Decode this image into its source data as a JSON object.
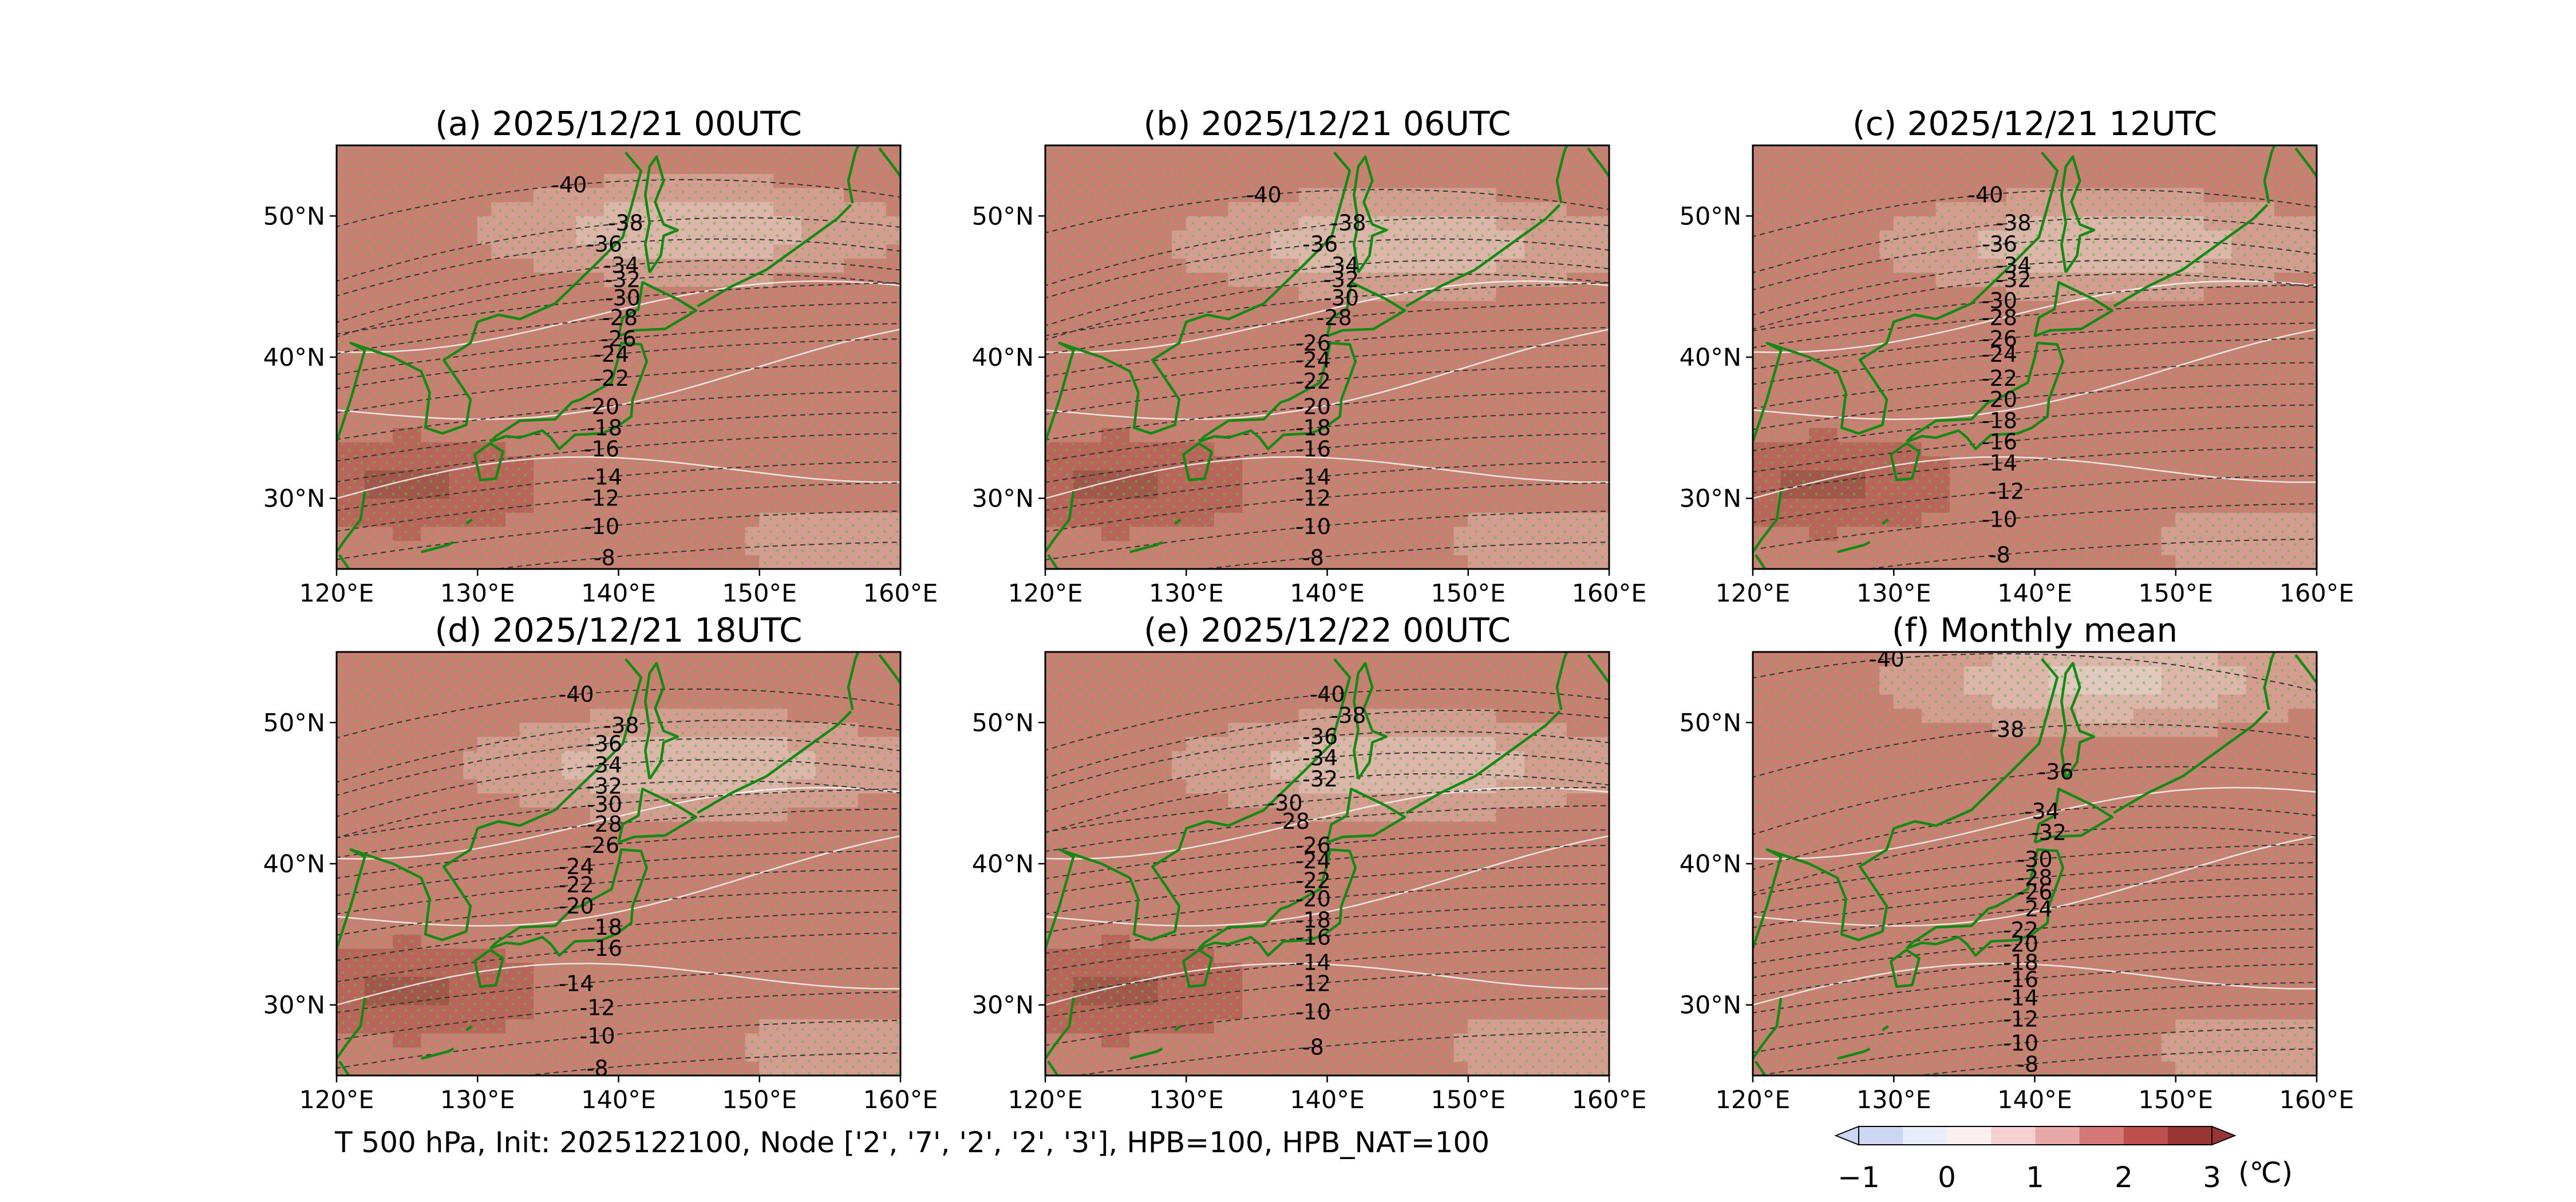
{
  "figure": {
    "caption": "T 500 hPa, Init: 2025122100, Node ['2', '7', '2', '2', '3'], HPB=100, HPB_NAT=100",
    "colorbar": {
      "ticks": [
        "−1",
        "0",
        "1",
        "2",
        "3"
      ],
      "unit": "(℃)",
      "levels": [
        -1.0,
        -0.5,
        0.0,
        0.5,
        1.0,
        1.5,
        2.0,
        2.5,
        3.0
      ],
      "colors": [
        "#cdd6f2",
        "#e9edfa",
        "#fbf0f0",
        "#f5d0d0",
        "#e8a8a8",
        "#d67878",
        "#bd4f4f",
        "#983636"
      ],
      "extend": "both"
    }
  },
  "chart_data": [
    {
      "type": "contour-map",
      "title": "(a) 2025/12/21 00UTC",
      "xlabel_ticks": [
        "120°E",
        "130°E",
        "140°E",
        "150°E",
        "160°E"
      ],
      "ylabel_ticks": [
        "30°N",
        "40°N",
        "50°N"
      ],
      "lon_range": [
        120,
        160
      ],
      "lat_range": [
        25,
        55
      ],
      "contour_labels": [
        "-40",
        "-38",
        "-36",
        "-34",
        "-32",
        "-30",
        "-28",
        "-26",
        "-24",
        "-22",
        "-20",
        "-18",
        "-16",
        "-14",
        "-12",
        "-10",
        "-8"
      ],
      "label_lons": [
        136.5,
        140.5,
        139.0,
        140.2,
        140.3,
        140.3,
        140.1,
        140.0,
        139.5,
        139.5,
        138.8,
        139.0,
        138.8,
        139.0,
        138.8,
        138.8,
        139.0
      ],
      "label_lats": [
        52.2,
        49.5,
        48.0,
        46.5,
        45.5,
        44.2,
        42.8,
        41.3,
        40.2,
        38.5,
        36.5,
        35.0,
        33.5,
        31.5,
        30.0,
        28.0,
        25.8
      ],
      "anomaly_c": {
        "ridge_lat": 49,
        "ridge_anom": 0.6,
        "warm_lat": 31,
        "warm_anom": 2.6
      }
    },
    {
      "type": "contour-map",
      "title": "(b) 2025/12/21 06UTC",
      "xlabel_ticks": [
        "120°E",
        "130°E",
        "140°E",
        "150°E",
        "160°E"
      ],
      "ylabel_ticks": [
        "30°N",
        "40°N",
        "50°N"
      ],
      "lon_range": [
        120,
        160
      ],
      "lat_range": [
        25,
        55
      ],
      "contour_labels": [
        "-40",
        "-38",
        "-36",
        "-34",
        "-32",
        "-30",
        "-28",
        "-26",
        "-24",
        "-22",
        "-20",
        "-18",
        "-16",
        "-14",
        "-12",
        "-10",
        "-8"
      ],
      "label_lons": [
        135.5,
        141.5,
        139.5,
        141.0,
        141.0,
        141.0,
        140.5,
        139.0,
        139.0,
        139.0,
        139.0,
        139.0,
        139.0,
        139.0,
        139.0,
        139.0,
        139.0
      ],
      "label_lats": [
        51.5,
        49.5,
        48.0,
        46.5,
        45.5,
        44.2,
        42.8,
        41.0,
        39.8,
        38.3,
        36.5,
        35.0,
        33.5,
        31.5,
        30.0,
        28.0,
        25.8
      ],
      "anomaly_c": {
        "ridge_lat": 48,
        "ridge_anom": 0.5,
        "warm_lat": 31,
        "warm_anom": 2.6
      }
    },
    {
      "type": "contour-map",
      "title": "(c) 2025/12/21 12UTC",
      "xlabel_ticks": [
        "120°E",
        "130°E",
        "140°E",
        "150°E",
        "160°E"
      ],
      "ylabel_ticks": [
        "30°N",
        "40°N",
        "50°N"
      ],
      "lon_range": [
        120,
        160
      ],
      "lat_range": [
        25,
        55
      ],
      "contour_labels": [
        "-40",
        "-38",
        "-36",
        "-34",
        "-32",
        "-30",
        "-28",
        "-26",
        "-24",
        "-22",
        "-20",
        "-18",
        "-16",
        "-14",
        "-12",
        "-10",
        "-8"
      ],
      "label_lons": [
        136.5,
        138.5,
        137.5,
        138.5,
        138.5,
        137.5,
        137.5,
        137.5,
        137.5,
        137.5,
        137.5,
        137.5,
        137.5,
        137.5,
        138.0,
        137.5,
        137.5
      ],
      "label_lats": [
        51.5,
        49.5,
        48.0,
        46.5,
        45.5,
        44.0,
        42.8,
        41.3,
        40.2,
        38.5,
        37.0,
        35.5,
        34.0,
        32.5,
        30.5,
        28.5,
        26.0
      ],
      "anomaly_c": {
        "ridge_lat": 48,
        "ridge_anom": 0.5,
        "warm_lat": 31,
        "warm_anom": 2.6
      }
    },
    {
      "type": "contour-map",
      "title": "(d) 2025/12/21 18UTC",
      "xlabel_ticks": [
        "120°E",
        "130°E",
        "140°E",
        "150°E",
        "160°E"
      ],
      "ylabel_ticks": [
        "30°N",
        "40°N",
        "50°N"
      ],
      "lon_range": [
        120,
        160
      ],
      "lat_range": [
        25,
        55
      ],
      "contour_labels": [
        "-40",
        "-38",
        "-36",
        "-34",
        "-32",
        "-30",
        "-28",
        "-26",
        "-24",
        "-22",
        "-20",
        "-18",
        "-16",
        "-14",
        "-12",
        "-10",
        "-8"
      ],
      "label_lons": [
        137.0,
        140.2,
        139.0,
        139.0,
        139.0,
        139.0,
        139.0,
        138.8,
        137.0,
        137.0,
        137.0,
        139.0,
        139.0,
        137.0,
        138.5,
        138.5,
        138.5
      ],
      "label_lats": [
        52.0,
        49.8,
        48.5,
        47.0,
        45.5,
        44.2,
        42.8,
        41.3,
        39.8,
        38.5,
        37.0,
        35.5,
        34.0,
        31.5,
        29.8,
        27.8,
        25.5
      ],
      "anomaly_c": {
        "ridge_lat": 47,
        "ridge_anom": 0.5,
        "warm_lat": 31,
        "warm_anom": 2.6
      }
    },
    {
      "type": "contour-map",
      "title": "(e) 2025/12/22 00UTC",
      "xlabel_ticks": [
        "120°E",
        "130°E",
        "140°E",
        "150°E",
        "160°E"
      ],
      "ylabel_ticks": [
        "30°N",
        "40°N",
        "50°N"
      ],
      "lon_range": [
        120,
        160
      ],
      "lat_range": [
        25,
        55
      ],
      "contour_labels": [
        "-40",
        "-38",
        "-36",
        "-34",
        "-32",
        "-30",
        "-28",
        "-26",
        "-24",
        "-22",
        "-20",
        "-18",
        "-16",
        "-14",
        "-12",
        "-10",
        "-8"
      ],
      "label_lons": [
        140.0,
        141.5,
        139.5,
        139.5,
        139.5,
        137.0,
        137.5,
        139.0,
        139.0,
        139.0,
        139.0,
        139.0,
        139.0,
        139.0,
        139.0,
        139.0,
        139.0
      ],
      "label_lats": [
        52.0,
        50.5,
        49.0,
        47.5,
        46.0,
        44.3,
        43.0,
        41.3,
        40.2,
        38.8,
        37.5,
        36.0,
        34.8,
        33.0,
        31.5,
        29.5,
        27.0
      ],
      "anomaly_c": {
        "ridge_lat": 47,
        "ridge_anom": 0.5,
        "warm_lat": 31,
        "warm_anom": 2.6
      }
    },
    {
      "type": "contour-map",
      "title": "(f) Monthly mean",
      "xlabel_ticks": [
        "120°E",
        "130°E",
        "140°E",
        "150°E",
        "160°E"
      ],
      "ylabel_ticks": [
        "30°N",
        "40°N",
        "50°N"
      ],
      "lon_range": [
        120,
        160
      ],
      "lat_range": [
        25,
        55
      ],
      "contour_labels": [
        "-40",
        "-38",
        "-36",
        "-34",
        "-32",
        "-30",
        "-28",
        "-26",
        "-24",
        "-22",
        "-20",
        "-18",
        "-16",
        "-14",
        "-12",
        "-10",
        "-8"
      ],
      "label_lons": [
        129.5,
        138.0,
        141.5,
        140.5,
        141.0,
        140.0,
        140.0,
        140.0,
        140.0,
        139.0,
        139.0,
        139.0,
        139.0,
        139.0,
        139.0,
        139.0,
        139.5
      ],
      "label_lats": [
        54.5,
        49.5,
        46.5,
        43.7,
        42.2,
        40.3,
        39.0,
        38.0,
        36.8,
        35.3,
        34.3,
        33.0,
        31.8,
        30.5,
        29.0,
        27.3,
        25.8
      ],
      "anomaly_c": {
        "ridge_lat": 53,
        "ridge_anom": 0.3,
        "warm_lat": 34,
        "warm_anom": 2.0
      }
    }
  ]
}
